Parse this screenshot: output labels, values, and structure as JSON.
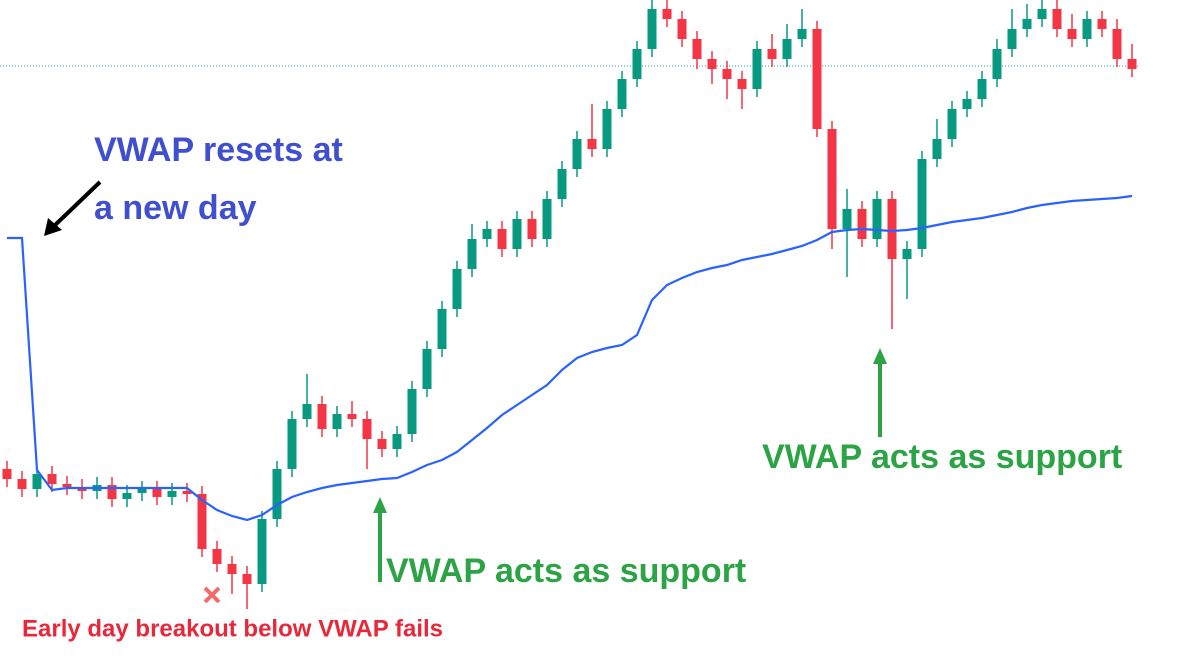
{
  "chart_data": {
    "type": "candlestick",
    "ylim": [
      0,
      669
    ],
    "up_color": "#089981",
    "down_color": "#f23645",
    "open": [
      200,
      190,
      180,
      195,
      185,
      182,
      178,
      184,
      170,
      176,
      180,
      172,
      178,
      175,
      120,
      105,
      95,
      85,
      150,
      200,
      250,
      265,
      240,
      255,
      250,
      230,
      220,
      235,
      280,
      320,
      360,
      400,
      430,
      440,
      420,
      450,
      430,
      470,
      500,
      530,
      520,
      560,
      590,
      620,
      660,
      650,
      630,
      610,
      600,
      590,
      580,
      620,
      610,
      630,
      640,
      540,
      440,
      460,
      430,
      470,
      410,
      420,
      510,
      530,
      560,
      570,
      590,
      620,
      640,
      650,
      660,
      640,
      630,
      650,
      640,
      610
    ],
    "high": [
      208,
      198,
      203,
      203,
      193,
      190,
      192,
      192,
      184,
      188,
      188,
      186,
      186,
      183,
      128,
      113,
      103,
      158,
      208,
      258,
      295,
      273,
      263,
      268,
      258,
      238,
      243,
      288,
      328,
      368,
      408,
      445,
      448,
      448,
      458,
      458,
      478,
      508,
      538,
      565,
      568,
      598,
      628,
      669,
      669,
      658,
      638,
      618,
      608,
      598,
      628,
      635,
      645,
      660,
      648,
      548,
      480,
      468,
      478,
      478,
      428,
      518,
      550,
      568,
      578,
      598,
      630,
      660,
      665,
      669,
      669,
      655,
      658,
      658,
      650,
      625
    ],
    "low": [
      182,
      172,
      172,
      177,
      174,
      170,
      170,
      162,
      162,
      168,
      164,
      164,
      167,
      112,
      97,
      75,
      60,
      77,
      142,
      192,
      242,
      232,
      232,
      242,
      200,
      212,
      212,
      227,
      272,
      312,
      352,
      392,
      422,
      412,
      412,
      422,
      422,
      462,
      492,
      512,
      512,
      552,
      582,
      612,
      642,
      622,
      600,
      585,
      570,
      560,
      572,
      602,
      602,
      622,
      532,
      420,
      392,
      422,
      422,
      340,
      370,
      412,
      502,
      522,
      552,
      562,
      582,
      612,
      632,
      642,
      632,
      622,
      622,
      632,
      602,
      592
    ],
    "close": [
      190,
      180,
      195,
      185,
      182,
      178,
      184,
      170,
      176,
      180,
      172,
      178,
      175,
      120,
      105,
      95,
      85,
      150,
      200,
      250,
      265,
      240,
      255,
      250,
      230,
      220,
      235,
      280,
      320,
      360,
      400,
      430,
      440,
      420,
      450,
      430,
      470,
      500,
      530,
      520,
      560,
      590,
      620,
      660,
      650,
      630,
      610,
      600,
      590,
      580,
      620,
      610,
      630,
      640,
      540,
      440,
      460,
      430,
      470,
      410,
      420,
      510,
      530,
      560,
      570,
      590,
      620,
      640,
      650,
      660,
      640,
      630,
      650,
      640,
      610,
      600
    ],
    "vwap": {
      "color": "#2962ff",
      "values": [
        431,
        431,
        199,
        179,
        181,
        181,
        181,
        181,
        181,
        181,
        181,
        181,
        181,
        169,
        159,
        153,
        149,
        154,
        164,
        172,
        177,
        181,
        184,
        186,
        188,
        190,
        191,
        197,
        204,
        209,
        217,
        229,
        241,
        254,
        264,
        274,
        284,
        299,
        311,
        317,
        321,
        324,
        334,
        369,
        384,
        391,
        397,
        401,
        404,
        409,
        412,
        415,
        419,
        423,
        429,
        437,
        439,
        440,
        439,
        438,
        439,
        441,
        444,
        447,
        449,
        451,
        454,
        457,
        461,
        464,
        466,
        468,
        469,
        470,
        471,
        473
      ]
    },
    "reference_line": {
      "value": 603,
      "color": "#26a69a"
    },
    "annotations": [
      {
        "text": "VWAP resets at",
        "color": "#3f4fd0"
      },
      {
        "text": "a new day",
        "color": "#3f4fd0"
      },
      {
        "text": "VWAP acts as support",
        "color": "#2ca344"
      },
      {
        "text": "VWAP acts as support",
        "color": "#2ca344"
      },
      {
        "text": "Early day breakout below VWAP fails",
        "color": "#e8283a"
      }
    ]
  }
}
